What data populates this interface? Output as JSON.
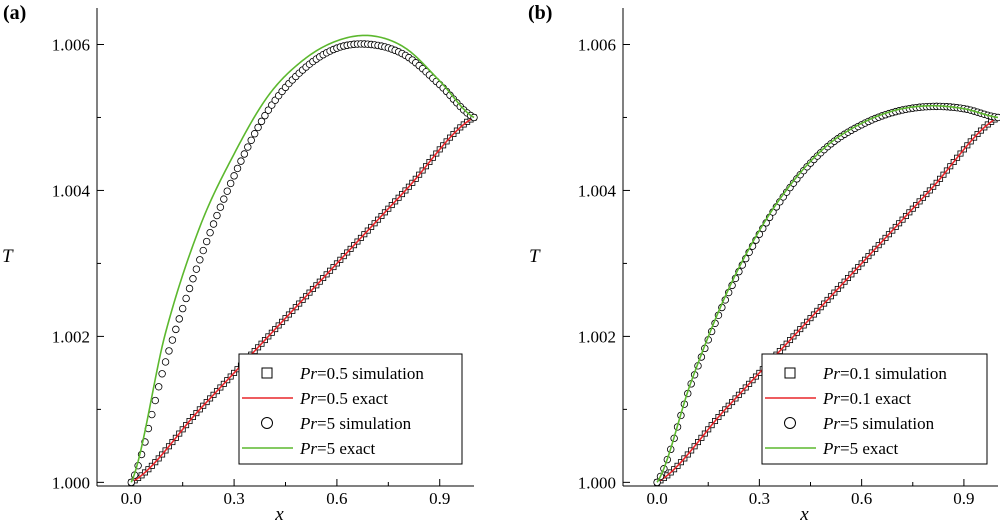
{
  "chart_data": [
    {
      "type": "line",
      "panel_label": "(a)",
      "xlabel": "x",
      "ylabel": "T",
      "xlim": [
        -0.1,
        1.0
      ],
      "ylim": [
        0.99995,
        1.0065
      ],
      "xticks": [
        0.0,
        0.3,
        0.6,
        0.9
      ],
      "xtick_labels": [
        "0.0",
        "0.3",
        "0.6",
        "0.9"
      ],
      "yticks": [
        1.0,
        1.002,
        1.004,
        1.006
      ],
      "ytick_labels": [
        "1.000",
        "1.002",
        "1.004",
        "1.006"
      ],
      "legend_position": "bottom-right",
      "series": [
        {
          "key": "sim_low",
          "name_italic": "Pr",
          "name_rest": "=0.5 simulation",
          "marker": "square",
          "color": "#000000",
          "x": [
            0.0,
            0.2,
            0.4,
            0.6,
            0.8,
            1.0
          ],
          "y": [
            1.0,
            1.001,
            1.002,
            1.003,
            1.004,
            1.005
          ]
        },
        {
          "key": "exact_low",
          "name_italic": "Pr",
          "name_rest": "=0.5 exact",
          "marker": "line",
          "color": "#e8262a",
          "x": [
            0.0,
            0.2,
            0.4,
            0.6,
            0.8,
            1.0
          ],
          "y": [
            1.0,
            1.001,
            1.002,
            1.003,
            1.004,
            1.005
          ]
        },
        {
          "key": "sim_high",
          "name_italic": "Pr",
          "name_rest": "=5 simulation",
          "marker": "circle",
          "color": "#000000",
          "x": [
            0.0,
            0.1,
            0.2,
            0.3,
            0.4,
            0.5,
            0.6,
            0.7,
            0.8,
            0.9,
            1.0
          ],
          "y": [
            1.0,
            1.00165,
            1.00305,
            1.0042,
            1.0051,
            1.00565,
            1.00595,
            1.006,
            1.00585,
            1.00545,
            1.005
          ]
        },
        {
          "key": "exact_high",
          "name_italic": "Pr",
          "name_rest": "=5 exact",
          "marker": "line",
          "color": "#5cb82e",
          "x": [
            0.0,
            0.1,
            0.2,
            0.3,
            0.4,
            0.5,
            0.6,
            0.7,
            0.8,
            0.9,
            1.0
          ],
          "y": [
            1.0,
            1.00205,
            1.0035,
            1.0045,
            1.0053,
            1.00578,
            1.00605,
            1.00612,
            1.00595,
            1.0055,
            1.005
          ]
        }
      ]
    },
    {
      "type": "line",
      "panel_label": "(b)",
      "xlabel": "x",
      "ylabel": "T",
      "xlim": [
        -0.1,
        1.0
      ],
      "ylim": [
        0.99995,
        1.0065
      ],
      "xticks": [
        0.0,
        0.3,
        0.6,
        0.9
      ],
      "xtick_labels": [
        "0.0",
        "0.3",
        "0.6",
        "0.9"
      ],
      "yticks": [
        1.0,
        1.002,
        1.004,
        1.006
      ],
      "ytick_labels": [
        "1.000",
        "1.002",
        "1.004",
        "1.006"
      ],
      "legend_position": "bottom-right",
      "series": [
        {
          "key": "sim_low",
          "name_italic": "Pr",
          "name_rest": "=0.1 simulation",
          "marker": "square",
          "color": "#000000",
          "x": [
            0.0,
            0.2,
            0.4,
            0.6,
            0.8,
            1.0
          ],
          "y": [
            1.0,
            1.001,
            1.002,
            1.003,
            1.004,
            1.005
          ]
        },
        {
          "key": "exact_low",
          "name_italic": "Pr",
          "name_rest": "=0.1 exact",
          "marker": "line",
          "color": "#e8262a",
          "x": [
            0.0,
            0.2,
            0.4,
            0.6,
            0.8,
            1.0
          ],
          "y": [
            1.0,
            1.001,
            1.002,
            1.003,
            1.004,
            1.005
          ]
        },
        {
          "key": "sim_high",
          "name_italic": "Pr",
          "name_rest": "=5 simulation",
          "marker": "circle",
          "color": "#000000",
          "x": [
            0.0,
            0.1,
            0.2,
            0.3,
            0.4,
            0.5,
            0.6,
            0.7,
            0.8,
            0.9,
            1.0
          ],
          "y": [
            1.0,
            1.00135,
            1.0025,
            1.0034,
            1.0041,
            1.0046,
            1.0049,
            1.00508,
            1.00515,
            1.00512,
            1.005
          ]
        },
        {
          "key": "exact_high",
          "name_italic": "Pr",
          "name_rest": "=5 exact",
          "marker": "line",
          "color": "#5cb82e",
          "x": [
            0.0,
            0.1,
            0.2,
            0.3,
            0.4,
            0.5,
            0.6,
            0.7,
            0.8,
            0.9,
            1.0
          ],
          "y": [
            1.0,
            1.00138,
            1.00255,
            1.00345,
            1.00413,
            1.00462,
            1.00492,
            1.0051,
            1.00516,
            1.00512,
            1.005
          ]
        }
      ]
    }
  ]
}
